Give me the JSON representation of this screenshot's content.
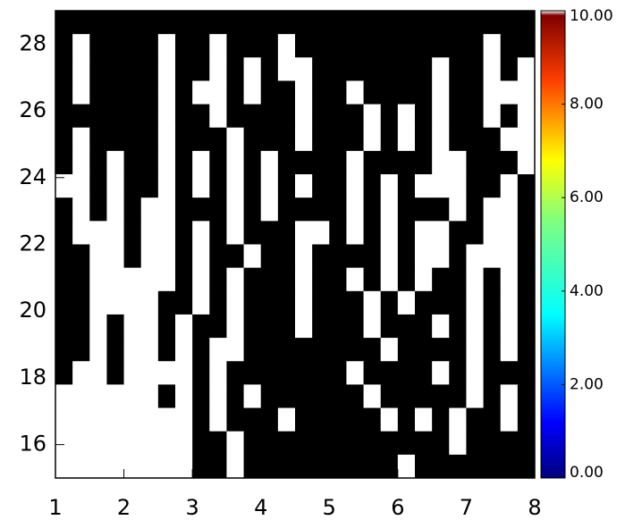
{
  "chart_data": {
    "type": "heatmap",
    "xlim": [
      1,
      8
    ],
    "xticks": [
      1,
      2,
      3,
      4,
      5,
      6,
      7,
      8
    ],
    "ylim": [
      15,
      29
    ],
    "yticks": [
      16,
      18,
      20,
      22,
      24,
      26,
      28
    ],
    "z_colors": [
      "#ffffff",
      "#000000"
    ],
    "z": [
      [
        1,
        1,
        1,
        1,
        1,
        1,
        1,
        1,
        1,
        1,
        1,
        1,
        1,
        1,
        1,
        1,
        1,
        1,
        1,
        1,
        1,
        1,
        1,
        1,
        1,
        1,
        1,
        1
      ],
      [
        1,
        0,
        1,
        1,
        1,
        1,
        0,
        1,
        1,
        0,
        1,
        1,
        1,
        0,
        1,
        1,
        1,
        1,
        1,
        1,
        1,
        1,
        1,
        1,
        1,
        0,
        1,
        1
      ],
      [
        1,
        0,
        1,
        1,
        1,
        1,
        0,
        1,
        1,
        0,
        1,
        0,
        1,
        0,
        0,
        1,
        1,
        1,
        1,
        1,
        1,
        1,
        0,
        1,
        1,
        0,
        1,
        0
      ],
      [
        1,
        0,
        1,
        1,
        1,
        1,
        0,
        1,
        0,
        0,
        1,
        0,
        1,
        1,
        0,
        1,
        1,
        0,
        1,
        1,
        1,
        1,
        0,
        1,
        1,
        0,
        0,
        0
      ],
      [
        1,
        1,
        1,
        1,
        1,
        1,
        0,
        1,
        1,
        0,
        1,
        1,
        1,
        1,
        0,
        1,
        1,
        1,
        0,
        1,
        0,
        1,
        0,
        1,
        1,
        0,
        1,
        0
      ],
      [
        1,
        0,
        1,
        1,
        1,
        1,
        0,
        1,
        1,
        1,
        0,
        1,
        1,
        1,
        0,
        1,
        1,
        1,
        0,
        1,
        0,
        1,
        0,
        1,
        1,
        1,
        0,
        0
      ],
      [
        1,
        0,
        1,
        0,
        1,
        1,
        0,
        1,
        0,
        1,
        0,
        1,
        0,
        1,
        1,
        1,
        1,
        0,
        1,
        1,
        1,
        1,
        0,
        0,
        1,
        1,
        1,
        0
      ],
      [
        0,
        0,
        1,
        0,
        1,
        1,
        0,
        1,
        0,
        1,
        0,
        1,
        0,
        1,
        0,
        1,
        1,
        0,
        1,
        0,
        1,
        0,
        0,
        0,
        1,
        1,
        0,
        1
      ],
      [
        1,
        0,
        1,
        0,
        1,
        0,
        0,
        1,
        1,
        1,
        0,
        1,
        0,
        1,
        1,
        1,
        1,
        0,
        1,
        0,
        1,
        1,
        1,
        0,
        1,
        0,
        0,
        1
      ],
      [
        1,
        0,
        0,
        0,
        1,
        0,
        0,
        1,
        0,
        1,
        0,
        1,
        1,
        1,
        0,
        0,
        1,
        0,
        1,
        0,
        1,
        0,
        0,
        1,
        1,
        0,
        0,
        1
      ],
      [
        1,
        1,
        0,
        0,
        1,
        0,
        0,
        1,
        0,
        1,
        1,
        0,
        1,
        1,
        0,
        1,
        1,
        1,
        1,
        0,
        1,
        0,
        0,
        1,
        0,
        0,
        0,
        1
      ],
      [
        1,
        1,
        0,
        0,
        0,
        0,
        0,
        1,
        0,
        1,
        0,
        1,
        1,
        1,
        0,
        1,
        1,
        0,
        1,
        0,
        1,
        0,
        1,
        1,
        0,
        1,
        0,
        1
      ],
      [
        1,
        1,
        0,
        0,
        0,
        0,
        1,
        1,
        0,
        1,
        0,
        1,
        1,
        1,
        0,
        1,
        1,
        1,
        0,
        1,
        0,
        1,
        1,
        1,
        0,
        1,
        0,
        1
      ],
      [
        1,
        1,
        0,
        1,
        0,
        0,
        1,
        0,
        1,
        1,
        0,
        1,
        1,
        1,
        0,
        1,
        1,
        1,
        0,
        1,
        1,
        1,
        0,
        1,
        0,
        1,
        0,
        1
      ],
      [
        1,
        1,
        0,
        1,
        0,
        0,
        1,
        0,
        1,
        0,
        0,
        1,
        1,
        1,
        1,
        1,
        1,
        1,
        1,
        0,
        1,
        1,
        1,
        1,
        0,
        1,
        0,
        1
      ],
      [
        1,
        0,
        0,
        1,
        0,
        0,
        0,
        0,
        1,
        0,
        1,
        1,
        1,
        1,
        1,
        1,
        1,
        0,
        1,
        1,
        1,
        1,
        0,
        1,
        0,
        1,
        1,
        1
      ],
      [
        0,
        0,
        0,
        0,
        0,
        0,
        1,
        0,
        1,
        0,
        1,
        0,
        1,
        1,
        1,
        1,
        1,
        1,
        0,
        1,
        1,
        1,
        1,
        1,
        0,
        1,
        0,
        1
      ],
      [
        0,
        0,
        0,
        0,
        0,
        0,
        0,
        0,
        1,
        0,
        1,
        1,
        1,
        0,
        1,
        1,
        1,
        1,
        1,
        0,
        1,
        0,
        1,
        0,
        1,
        1,
        0,
        1
      ],
      [
        0,
        0,
        0,
        0,
        0,
        0,
        0,
        0,
        1,
        1,
        0,
        1,
        1,
        1,
        1,
        1,
        1,
        1,
        1,
        1,
        1,
        1,
        1,
        0,
        1,
        1,
        1,
        1
      ],
      [
        0,
        0,
        0,
        0,
        0,
        0,
        0,
        0,
        1,
        1,
        0,
        1,
        1,
        1,
        1,
        1,
        1,
        1,
        1,
        1,
        0,
        1,
        1,
        1,
        1,
        1,
        1,
        1
      ]
    ],
    "colorbar": {
      "lim": [
        0,
        10
      ],
      "ticks": [
        {
          "value": 0,
          "label": "0.00"
        },
        {
          "value": 2,
          "label": "2.00"
        },
        {
          "value": 4,
          "label": "4.00"
        },
        {
          "value": 6,
          "label": "6.00"
        },
        {
          "value": 8,
          "label": "8.00"
        },
        {
          "value": 10,
          "label": "10.00"
        }
      ]
    }
  }
}
